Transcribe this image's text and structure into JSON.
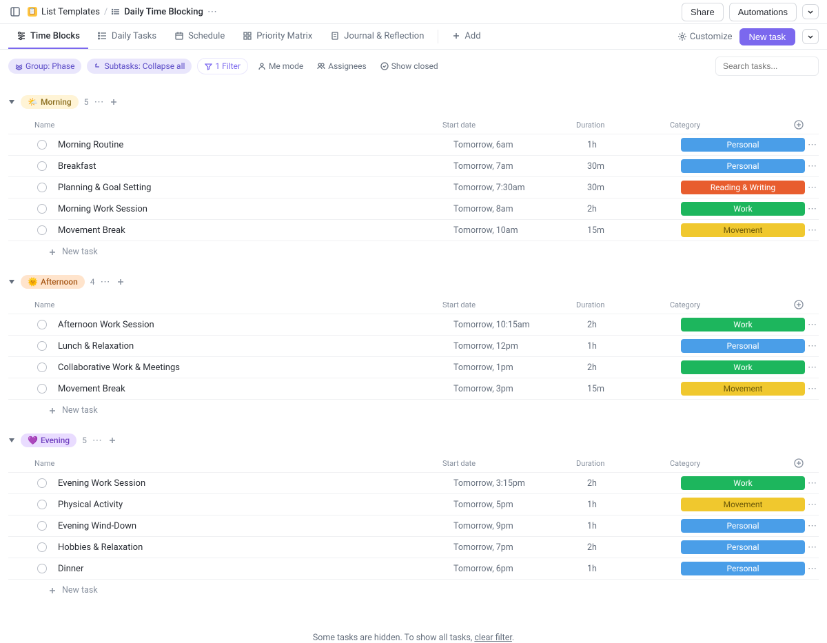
{
  "header": {
    "breadcrumb_parent": "List Templates",
    "breadcrumb_current": "Daily Time Blocking",
    "share": "Share",
    "automations": "Automations"
  },
  "tabs": {
    "items": [
      {
        "label": "Time Blocks"
      },
      {
        "label": "Daily Tasks"
      },
      {
        "label": "Schedule"
      },
      {
        "label": "Priority Matrix"
      },
      {
        "label": "Journal & Reflection"
      }
    ],
    "add": "Add",
    "customize": "Customize",
    "new_task": "New task"
  },
  "filters": {
    "group": "Group: Phase",
    "subtasks": "Subtasks: Collapse all",
    "filter": "1 Filter",
    "me_mode": "Me mode",
    "assignees": "Assignees",
    "show_closed": "Show closed",
    "search_placeholder": "Search tasks..."
  },
  "columns": {
    "name": "Name",
    "start_date": "Start date",
    "duration": "Duration",
    "category": "Category"
  },
  "categories": {
    "personal": "Personal",
    "reading": "Reading & Writing",
    "work": "Work",
    "movement": "Movement"
  },
  "groups": [
    {
      "key": "morning",
      "emoji": "🌤️",
      "label": "Morning",
      "count": "5",
      "tasks": [
        {
          "name": "Morning Routine",
          "date": "Tomorrow, 6am",
          "duration": "1h",
          "cat": "personal"
        },
        {
          "name": "Breakfast",
          "date": "Tomorrow, 7am",
          "duration": "30m",
          "cat": "personal"
        },
        {
          "name": "Planning & Goal Setting",
          "date": "Tomorrow, 7:30am",
          "duration": "30m",
          "cat": "reading"
        },
        {
          "name": "Morning Work Session",
          "date": "Tomorrow, 8am",
          "duration": "2h",
          "cat": "work"
        },
        {
          "name": "Movement Break",
          "date": "Tomorrow, 10am",
          "duration": "15m",
          "cat": "movement"
        }
      ]
    },
    {
      "key": "afternoon",
      "emoji": "🌞",
      "label": "Afternoon",
      "count": "4",
      "tasks": [
        {
          "name": "Afternoon Work Session",
          "date": "Tomorrow, 10:15am",
          "duration": "2h",
          "cat": "work"
        },
        {
          "name": "Lunch & Relaxation",
          "date": "Tomorrow, 12pm",
          "duration": "1h",
          "cat": "personal"
        },
        {
          "name": "Collaborative Work & Meetings",
          "date": "Tomorrow, 1pm",
          "duration": "2h",
          "cat": "work"
        },
        {
          "name": "Movement Break",
          "date": "Tomorrow, 3pm",
          "duration": "15m",
          "cat": "movement"
        }
      ]
    },
    {
      "key": "evening",
      "emoji": "💜",
      "label": "Evening",
      "count": "5",
      "tasks": [
        {
          "name": "Evening Work Session",
          "date": "Tomorrow, 3:15pm",
          "duration": "2h",
          "cat": "work"
        },
        {
          "name": "Physical Activity",
          "date": "Tomorrow, 5pm",
          "duration": "1h",
          "cat": "movement"
        },
        {
          "name": "Evening Wind-Down",
          "date": "Tomorrow, 9pm",
          "duration": "1h",
          "cat": "personal"
        },
        {
          "name": "Hobbies & Relaxation",
          "date": "Tomorrow, 7pm",
          "duration": "2h",
          "cat": "personal"
        },
        {
          "name": "Dinner",
          "date": "Tomorrow, 6pm",
          "duration": "1h",
          "cat": "personal"
        }
      ]
    }
  ],
  "new_task_label": "New task",
  "footer": {
    "text_before": "Some tasks are hidden. To show all tasks, ",
    "link": "clear filter",
    "text_after": "."
  }
}
